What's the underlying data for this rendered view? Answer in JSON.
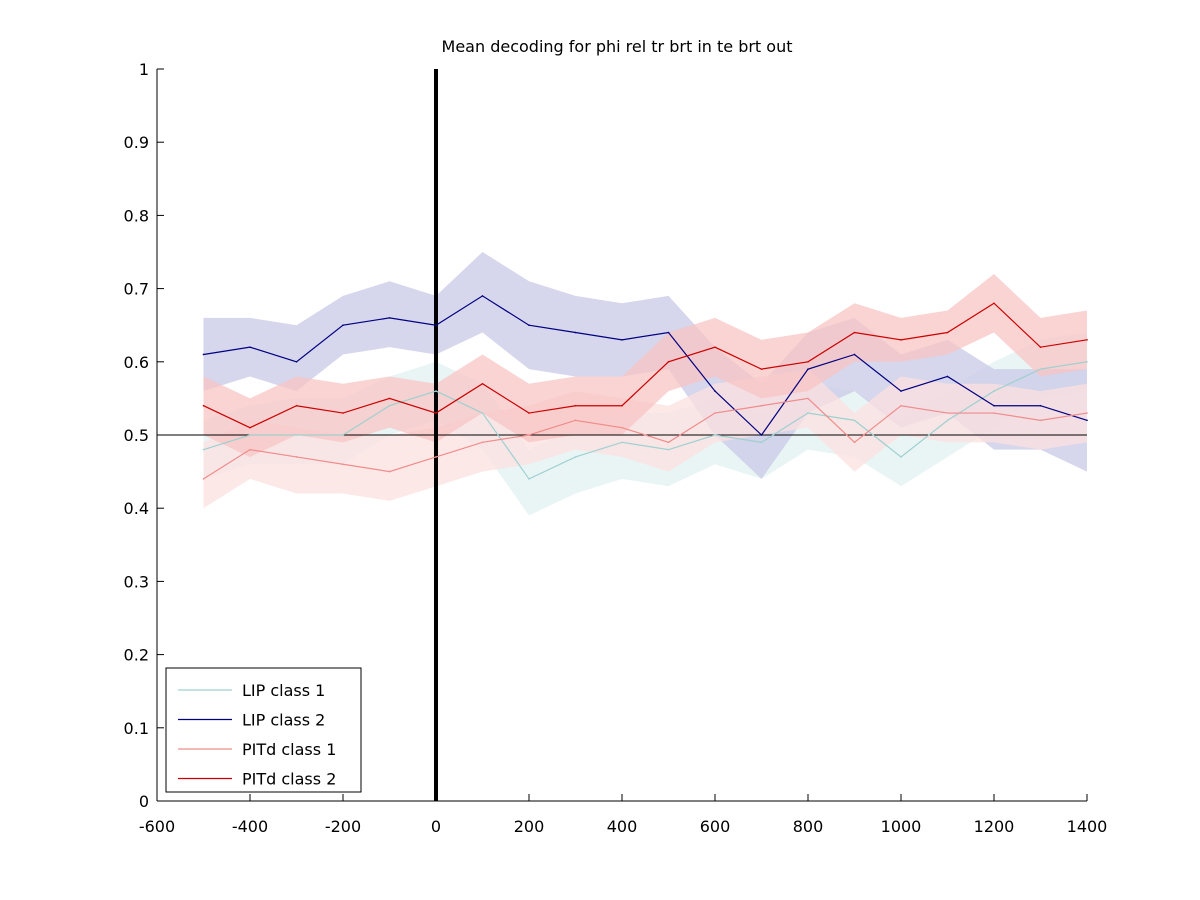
{
  "chart_data": {
    "type": "line",
    "title": "Mean decoding for phi rel tr brt in te brt out",
    "xlabel": "",
    "ylabel": "",
    "xlim": [
      -600,
      1400
    ],
    "ylim": [
      0,
      1
    ],
    "x_ticks": [
      -600,
      -400,
      -200,
      0,
      200,
      400,
      600,
      800,
      1000,
      1200,
      1400
    ],
    "x_tick_labels": [
      "-600",
      "-400",
      "-200",
      "0",
      "200",
      "400",
      "600",
      "800",
      "1000",
      "1200",
      "1400"
    ],
    "y_ticks": [
      0,
      0.1,
      0.2,
      0.3,
      0.4,
      0.5,
      0.6,
      0.7,
      0.8,
      0.9,
      1
    ],
    "y_tick_labels": [
      "0",
      "0.1",
      "0.2",
      "0.3",
      "0.4",
      "0.5",
      "0.6",
      "0.7",
      "0.8",
      "0.9",
      "1"
    ],
    "grid": false,
    "legend_position": "lower-left",
    "x": [
      -500,
      -400,
      -300,
      -200,
      -100,
      0,
      100,
      200,
      300,
      400,
      500,
      600,
      700,
      800,
      900,
      1000,
      1100,
      1200,
      1300,
      1400
    ],
    "series": [
      {
        "name": "LIP class 1",
        "color": "#9fd0d0",
        "fill_color": "#e2f2f2",
        "values": [
          0.48,
          0.5,
          0.5,
          0.5,
          0.54,
          0.56,
          0.53,
          0.44,
          0.47,
          0.49,
          0.48,
          0.5,
          0.49,
          0.53,
          0.52,
          0.47,
          0.52,
          0.56,
          0.59,
          0.6
        ],
        "lower": [
          0.44,
          0.46,
          0.46,
          0.46,
          0.5,
          0.52,
          0.48,
          0.39,
          0.42,
          0.44,
          0.43,
          0.46,
          0.44,
          0.48,
          0.47,
          0.43,
          0.47,
          0.51,
          0.55,
          0.56
        ],
        "upper": [
          0.52,
          0.54,
          0.55,
          0.55,
          0.58,
          0.6,
          0.57,
          0.48,
          0.51,
          0.53,
          0.53,
          0.55,
          0.53,
          0.57,
          0.56,
          0.52,
          0.56,
          0.6,
          0.63,
          0.64
        ]
      },
      {
        "name": "LIP class 2",
        "color": "#000080",
        "fill_color": "#c8c8e6",
        "values": [
          0.61,
          0.62,
          0.6,
          0.65,
          0.66,
          0.65,
          0.69,
          0.65,
          0.64,
          0.63,
          0.64,
          0.56,
          0.5,
          0.59,
          0.61,
          0.56,
          0.58,
          0.54,
          0.54,
          0.52
        ],
        "lower": [
          0.56,
          0.58,
          0.56,
          0.61,
          0.62,
          0.61,
          0.64,
          0.59,
          0.58,
          0.58,
          0.59,
          0.5,
          0.44,
          0.53,
          0.56,
          0.51,
          0.53,
          0.48,
          0.48,
          0.45
        ],
        "upper": [
          0.66,
          0.66,
          0.65,
          0.69,
          0.71,
          0.69,
          0.75,
          0.71,
          0.69,
          0.68,
          0.69,
          0.62,
          0.57,
          0.64,
          0.66,
          0.61,
          0.63,
          0.59,
          0.59,
          0.59
        ]
      },
      {
        "name": "PITd class 1",
        "color": "#f08c8c",
        "fill_color": "#fce0e0",
        "values": [
          0.44,
          0.48,
          0.47,
          0.46,
          0.45,
          0.47,
          0.49,
          0.5,
          0.52,
          0.51,
          0.49,
          0.53,
          0.54,
          0.55,
          0.49,
          0.54,
          0.53,
          0.53,
          0.52,
          0.53
        ],
        "lower": [
          0.4,
          0.44,
          0.42,
          0.42,
          0.41,
          0.43,
          0.45,
          0.46,
          0.48,
          0.47,
          0.45,
          0.49,
          0.5,
          0.51,
          0.45,
          0.5,
          0.49,
          0.49,
          0.48,
          0.49
        ],
        "upper": [
          0.49,
          0.52,
          0.51,
          0.5,
          0.5,
          0.51,
          0.53,
          0.54,
          0.56,
          0.55,
          0.54,
          0.57,
          0.58,
          0.59,
          0.53,
          0.58,
          0.57,
          0.57,
          0.56,
          0.57
        ]
      },
      {
        "name": "PITd class 2",
        "color": "#cc0000",
        "fill_color": "#f8c4c4",
        "values": [
          0.54,
          0.51,
          0.54,
          0.53,
          0.55,
          0.53,
          0.57,
          0.53,
          0.54,
          0.54,
          0.6,
          0.62,
          0.59,
          0.6,
          0.64,
          0.63,
          0.64,
          0.68,
          0.62,
          0.63
        ],
        "lower": [
          0.5,
          0.47,
          0.5,
          0.49,
          0.51,
          0.49,
          0.53,
          0.49,
          0.5,
          0.5,
          0.56,
          0.58,
          0.55,
          0.56,
          0.6,
          0.6,
          0.61,
          0.64,
          0.58,
          0.59
        ],
        "upper": [
          0.58,
          0.55,
          0.58,
          0.57,
          0.58,
          0.57,
          0.61,
          0.57,
          0.58,
          0.58,
          0.64,
          0.66,
          0.63,
          0.64,
          0.68,
          0.66,
          0.67,
          0.72,
          0.66,
          0.67
        ]
      }
    ],
    "reference_lines": {
      "horizontal_y": 0.5,
      "vertical_x": 0
    }
  }
}
